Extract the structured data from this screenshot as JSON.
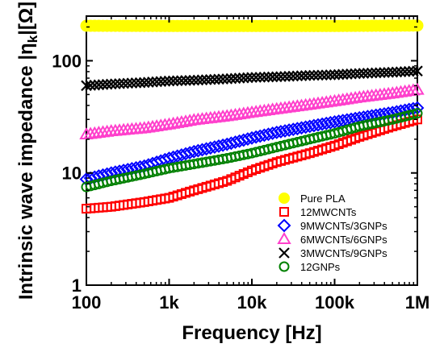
{
  "chart_data": {
    "type": "scatter",
    "title": "",
    "xlabel": "Frequency [Hz]",
    "ylabel": "Intrinsic wave impedance |η_k|[Ω]",
    "ylabel_parts": {
      "pre": "Intrinsic wave impedance |η",
      "sub": "k",
      "post": "|[Ω]"
    },
    "x_scale": "log",
    "y_scale": "log",
    "xlim": [
      100,
      1000000
    ],
    "ylim": [
      1,
      250
    ],
    "x_ticks": [
      {
        "value": 100,
        "label": "100"
      },
      {
        "value": 1000,
        "label": "1k"
      },
      {
        "value": 10000,
        "label": "10k"
      },
      {
        "value": 100000,
        "label": "100k"
      },
      {
        "value": 1000000,
        "label": "1M"
      }
    ],
    "y_ticks": [
      {
        "value": 1,
        "label": "1"
      },
      {
        "value": 10,
        "label": "10"
      },
      {
        "value": 100,
        "label": "100"
      }
    ],
    "legend_position": "lower-right",
    "series": [
      {
        "name": "Pure PLA",
        "marker": "circle-filled",
        "color": "#ffff00",
        "x": [
          100,
          1000,
          10000,
          100000,
          1000000
        ],
        "y": [
          205,
          204,
          204,
          204,
          206
        ]
      },
      {
        "name": "12MWCNTs",
        "marker": "square-open",
        "color": "#ff0000",
        "x": [
          100,
          200,
          500,
          1000,
          2000,
          5000,
          10000,
          20000,
          50000,
          100000,
          200000,
          500000,
          1000000
        ],
        "y": [
          4.8,
          5.0,
          5.5,
          6.0,
          7.0,
          8.5,
          10.5,
          12.5,
          15.0,
          17.5,
          21.0,
          26.0,
          30.0
        ]
      },
      {
        "name": "9MWCNTs/3GNPs",
        "marker": "diamond-open",
        "color": "#0000ff",
        "x": [
          100,
          200,
          500,
          1000,
          2000,
          5000,
          10000,
          20000,
          50000,
          100000,
          200000,
          500000,
          1000000
        ],
        "y": [
          8.8,
          10.0,
          11.5,
          13.5,
          15.5,
          18.0,
          20.5,
          23.0,
          26.0,
          28.5,
          31.0,
          34.5,
          38.0
        ]
      },
      {
        "name": "6MWCNTs/6GNPs",
        "marker": "triangle-open",
        "color": "#ff40cc",
        "x": [
          100,
          200,
          500,
          1000,
          2000,
          5000,
          10000,
          20000,
          50000,
          100000,
          200000,
          500000,
          1000000
        ],
        "y": [
          22.0,
          23.5,
          25.0,
          27.0,
          29.5,
          32.0,
          34.5,
          37.0,
          40.5,
          43.5,
          47.0,
          51.0,
          55.0
        ]
      },
      {
        "name": "3MWCNTs/9GNPs",
        "marker": "cross",
        "color": "#000000",
        "x": [
          100,
          200,
          500,
          1000,
          2000,
          5000,
          10000,
          20000,
          50000,
          100000,
          200000,
          500000,
          1000000
        ],
        "y": [
          60,
          62,
          64,
          66,
          67,
          69,
          71,
          72,
          74,
          75,
          77,
          79,
          81
        ]
      },
      {
        "name": "12GNPs",
        "marker": "circle-open",
        "color": "#008000",
        "x": [
          100,
          200,
          500,
          1000,
          2000,
          5000,
          10000,
          20000,
          50000,
          100000,
          200000,
          500000,
          1000000
        ],
        "y": [
          7.5,
          8.5,
          9.8,
          11.0,
          12.0,
          13.5,
          15.0,
          17.0,
          20.0,
          22.5,
          26.0,
          30.0,
          34.0
        ]
      }
    ]
  }
}
